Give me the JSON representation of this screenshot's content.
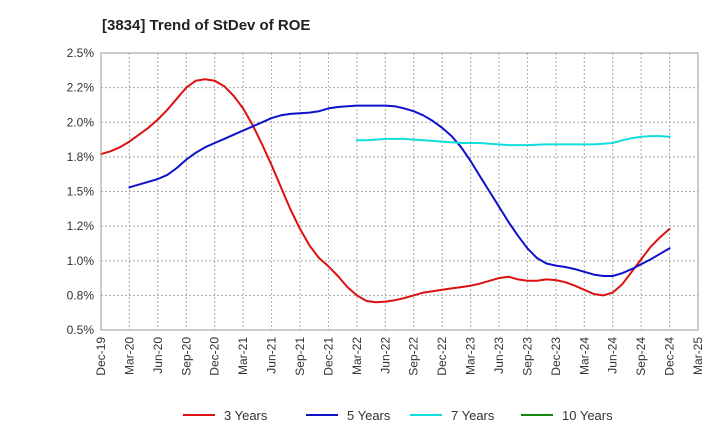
{
  "chart_data": {
    "type": "line",
    "title": "[3834]  Trend of StDev of ROE",
    "xlabel": "",
    "ylabel": "",
    "x_ticks": [
      "Dec-19",
      "Mar-20",
      "Jun-20",
      "Sep-20",
      "Dec-20",
      "Mar-21",
      "Jun-21",
      "Sep-21",
      "Dec-21",
      "Mar-22",
      "Jun-22",
      "Sep-22",
      "Dec-22",
      "Mar-23",
      "Jun-23",
      "Sep-23",
      "Dec-23",
      "Mar-24",
      "Jun-24",
      "Sep-24",
      "Dec-24",
      "Mar-25"
    ],
    "y_ticks": [
      "0.5%",
      "0.8%",
      "1.0%",
      "1.2%",
      "1.5%",
      "1.8%",
      "2.0%",
      "2.2%",
      "2.5%"
    ],
    "y_tick_values": [
      0.5,
      0.75,
      1.0,
      1.25,
      1.5,
      1.75,
      2.0,
      2.25,
      2.5
    ],
    "ylim": [
      0.5,
      2.5
    ],
    "grid": true,
    "legend_position": "bottom",
    "series": [
      {
        "name": "3 Years",
        "color": "#dd1111",
        "points": [
          [
            "Dec-19",
            1.77
          ],
          [
            "Jan-20",
            1.79
          ],
          [
            "Feb-20",
            1.82
          ],
          [
            "Mar-20",
            1.86
          ],
          [
            "Apr-20",
            1.91
          ],
          [
            "May-20",
            1.96
          ],
          [
            "Jun-20",
            2.02
          ],
          [
            "Jul-20",
            2.09
          ],
          [
            "Aug-20",
            2.17
          ],
          [
            "Sep-20",
            2.25
          ],
          [
            "Oct-20",
            2.3
          ],
          [
            "Nov-20",
            2.31
          ],
          [
            "Dec-20",
            2.3
          ],
          [
            "Jan-21",
            2.26
          ],
          [
            "Feb-21",
            2.19
          ],
          [
            "Mar-21",
            2.1
          ],
          [
            "Apr-21",
            1.98
          ],
          [
            "May-21",
            1.84
          ],
          [
            "Jun-21",
            1.69
          ],
          [
            "Jul-21",
            1.53
          ],
          [
            "Aug-21",
            1.37
          ],
          [
            "Sep-21",
            1.23
          ],
          [
            "Oct-21",
            1.11
          ],
          [
            "Nov-21",
            1.02
          ],
          [
            "Dec-21",
            0.96
          ],
          [
            "Jan-22",
            0.89
          ],
          [
            "Feb-22",
            0.81
          ],
          [
            "Mar-22",
            0.75
          ],
          [
            "Apr-22",
            0.71
          ],
          [
            "May-22",
            0.7
          ],
          [
            "Jun-22",
            0.705
          ],
          [
            "Jul-22",
            0.715
          ],
          [
            "Aug-22",
            0.73
          ],
          [
            "Sep-22",
            0.75
          ],
          [
            "Oct-22",
            0.77
          ],
          [
            "Nov-22",
            0.78
          ],
          [
            "Dec-22",
            0.79
          ],
          [
            "Jan-23",
            0.8
          ],
          [
            "Feb-23",
            0.81
          ],
          [
            "Mar-23",
            0.82
          ],
          [
            "Apr-23",
            0.835
          ],
          [
            "May-23",
            0.855
          ],
          [
            "Jun-23",
            0.875
          ],
          [
            "Jul-23",
            0.885
          ],
          [
            "Aug-23",
            0.865
          ],
          [
            "Sep-23",
            0.855
          ],
          [
            "Oct-23",
            0.855
          ],
          [
            "Nov-23",
            0.865
          ],
          [
            "Dec-23",
            0.86
          ],
          [
            "Jan-24",
            0.845
          ],
          [
            "Feb-24",
            0.82
          ],
          [
            "Mar-24",
            0.79
          ],
          [
            "Apr-24",
            0.76
          ],
          [
            "May-24",
            0.75
          ],
          [
            "Jun-24",
            0.77
          ],
          [
            "Jul-24",
            0.83
          ],
          [
            "Aug-24",
            0.92
          ],
          [
            "Sep-24",
            1.01
          ],
          [
            "Oct-24",
            1.1
          ],
          [
            "Nov-24",
            1.17
          ],
          [
            "Dec-24",
            1.23
          ]
        ]
      },
      {
        "name": "5 Years",
        "color": "#1111cc",
        "points": [
          [
            "Mar-20",
            1.53
          ],
          [
            "Apr-20",
            1.55
          ],
          [
            "May-20",
            1.57
          ],
          [
            "Jun-20",
            1.59
          ],
          [
            "Jul-20",
            1.62
          ],
          [
            "Aug-20",
            1.67
          ],
          [
            "Sep-20",
            1.73
          ],
          [
            "Oct-20",
            1.78
          ],
          [
            "Nov-20",
            1.82
          ],
          [
            "Dec-20",
            1.85
          ],
          [
            "Jan-21",
            1.88
          ],
          [
            "Feb-21",
            1.91
          ],
          [
            "Mar-21",
            1.94
          ],
          [
            "Apr-21",
            1.97
          ],
          [
            "May-21",
            2.0
          ],
          [
            "Jun-21",
            2.03
          ],
          [
            "Jul-21",
            2.05
          ],
          [
            "Aug-21",
            2.06
          ],
          [
            "Sep-21",
            2.065
          ],
          [
            "Oct-21",
            2.07
          ],
          [
            "Nov-21",
            2.08
          ],
          [
            "Dec-21",
            2.1
          ],
          [
            "Jan-22",
            2.11
          ],
          [
            "Feb-22",
            2.115
          ],
          [
            "Mar-22",
            2.12
          ],
          [
            "Apr-22",
            2.12
          ],
          [
            "May-22",
            2.12
          ],
          [
            "Jun-22",
            2.12
          ],
          [
            "Jul-22",
            2.115
          ],
          [
            "Aug-22",
            2.1
          ],
          [
            "Sep-22",
            2.08
          ],
          [
            "Oct-22",
            2.05
          ],
          [
            "Nov-22",
            2.01
          ],
          [
            "Dec-22",
            1.96
          ],
          [
            "Jan-23",
            1.9
          ],
          [
            "Feb-23",
            1.82
          ],
          [
            "Mar-23",
            1.72
          ],
          [
            "Apr-23",
            1.61
          ],
          [
            "May-23",
            1.5
          ],
          [
            "Jun-23",
            1.39
          ],
          [
            "Jul-23",
            1.28
          ],
          [
            "Aug-23",
            1.18
          ],
          [
            "Sep-23",
            1.09
          ],
          [
            "Oct-23",
            1.02
          ],
          [
            "Nov-23",
            0.98
          ],
          [
            "Dec-23",
            0.965
          ],
          [
            "Jan-24",
            0.955
          ],
          [
            "Feb-24",
            0.94
          ],
          [
            "Mar-24",
            0.92
          ],
          [
            "Apr-24",
            0.9
          ],
          [
            "May-24",
            0.89
          ],
          [
            "Jun-24",
            0.89
          ],
          [
            "Jul-24",
            0.91
          ],
          [
            "Aug-24",
            0.94
          ],
          [
            "Sep-24",
            0.975
          ],
          [
            "Oct-24",
            1.01
          ],
          [
            "Nov-24",
            1.05
          ],
          [
            "Dec-24",
            1.09
          ]
        ]
      },
      {
        "name": "7 Years",
        "color": "#11dddd",
        "points": [
          [
            "Mar-22",
            1.87
          ],
          [
            "Apr-22",
            1.87
          ],
          [
            "May-22",
            1.875
          ],
          [
            "Jun-22",
            1.88
          ],
          [
            "Jul-22",
            1.88
          ],
          [
            "Aug-22",
            1.88
          ],
          [
            "Sep-22",
            1.875
          ],
          [
            "Oct-22",
            1.87
          ],
          [
            "Nov-22",
            1.865
          ],
          [
            "Dec-22",
            1.86
          ],
          [
            "Jan-23",
            1.855
          ],
          [
            "Feb-23",
            1.85
          ],
          [
            "Mar-23",
            1.85
          ],
          [
            "Apr-23",
            1.85
          ],
          [
            "May-23",
            1.845
          ],
          [
            "Jun-23",
            1.84
          ],
          [
            "Jul-23",
            1.835
          ],
          [
            "Aug-23",
            1.835
          ],
          [
            "Sep-23",
            1.835
          ],
          [
            "Oct-23",
            1.838
          ],
          [
            "Nov-23",
            1.84
          ],
          [
            "Dec-23",
            1.84
          ],
          [
            "Jan-24",
            1.84
          ],
          [
            "Feb-24",
            1.84
          ],
          [
            "Mar-24",
            1.84
          ],
          [
            "Apr-24",
            1.84
          ],
          [
            "May-24",
            1.845
          ],
          [
            "Jun-24",
            1.85
          ],
          [
            "Jul-24",
            1.87
          ],
          [
            "Aug-24",
            1.885
          ],
          [
            "Sep-24",
            1.895
          ],
          [
            "Oct-24",
            1.9
          ],
          [
            "Nov-24",
            1.9
          ],
          [
            "Dec-24",
            1.895
          ]
        ]
      },
      {
        "name": "10 Years",
        "color": "#118811",
        "points": []
      }
    ]
  }
}
